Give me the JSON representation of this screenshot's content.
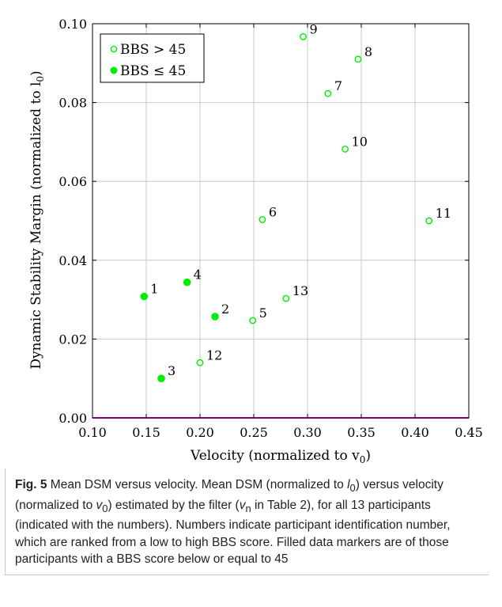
{
  "chart_data": {
    "type": "scatter",
    "title": "",
    "xlabel": "Velocity (normalized to v",
    "xlabel_sub": "0",
    "xlabel_end": ")",
    "ylabel": "Dynamic Stability Margin (normalized to l",
    "ylabel_sub": "0",
    "ylabel_end": ")",
    "xlim": [
      0.1,
      0.45
    ],
    "ylim": [
      0.0,
      0.1
    ],
    "x_ticks": [
      "0.10",
      "0.15",
      "0.20",
      "0.25",
      "0.30",
      "0.35",
      "0.40",
      "0.45"
    ],
    "y_ticks": [
      "0.00",
      "0.02",
      "0.04",
      "0.06",
      "0.08",
      "0.10"
    ],
    "grid": true,
    "legend_position": "top-left",
    "zero_line_color": "#ff00ff",
    "marker_color": "#00ee00",
    "series": [
      {
        "name": "BBS  > 45",
        "filled": false,
        "points": [
          {
            "label": "5",
            "x": 0.249,
            "y": 0.0247
          },
          {
            "label": "6",
            "x": 0.258,
            "y": 0.0503
          },
          {
            "label": "7",
            "x": 0.319,
            "y": 0.0823
          },
          {
            "label": "8",
            "x": 0.347,
            "y": 0.091
          },
          {
            "label": "9",
            "x": 0.296,
            "y": 0.0967
          },
          {
            "label": "10",
            "x": 0.335,
            "y": 0.0682
          },
          {
            "label": "11",
            "x": 0.413,
            "y": 0.05
          },
          {
            "label": "12",
            "x": 0.2,
            "y": 0.014
          },
          {
            "label": "13",
            "x": 0.28,
            "y": 0.0303
          }
        ]
      },
      {
        "name": "BBS  ≤ 45",
        "filled": true,
        "points": [
          {
            "label": "1",
            "x": 0.148,
            "y": 0.0308
          },
          {
            "label": "2",
            "x": 0.214,
            "y": 0.0257
          },
          {
            "label": "3",
            "x": 0.164,
            "y": 0.01
          },
          {
            "label": "4",
            "x": 0.188,
            "y": 0.0344
          }
        ]
      }
    ]
  },
  "caption": {
    "fig_label": "Fig. 5",
    "text_1": " Mean DSM versus velocity. Mean DSM (normalized to ",
    "l_var": "l",
    "l_sub": "0",
    "text_2": ") versus velocity (normalized to ",
    "v_var": "v",
    "v_sub": "0",
    "text_3": ") estimated by the filter (",
    "vn_var": "v",
    "vn_sub": "n",
    "text_4": " in Table 2), for all 13 participants (indicated with the numbers). Numbers indicate participant identification number, which are ranked from a low to high BBS score. Filled data markers are of those participants with a BBS score below or equal to 45"
  }
}
